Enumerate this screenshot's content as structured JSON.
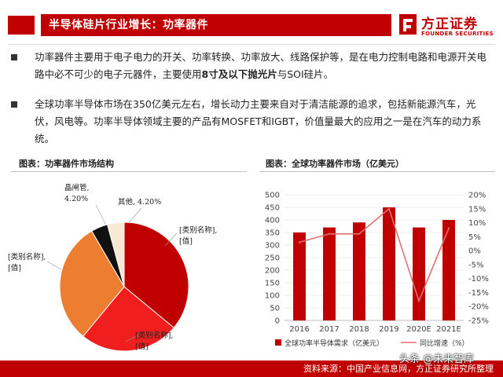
{
  "header": {
    "title": "半导体硅片行业增长：功率器件",
    "logo": {
      "name": "方正证券",
      "en": "FOUNDER SECURITIES"
    }
  },
  "bullets": [
    {
      "pre": "功率器件主要用于电子电力的开关、功率转换、功率放大、线路保护等，是在电力控制电路和电源开关电路中必不可少的电子元器件，主要使用",
      "bold": "8寸及以下抛光片",
      "post": "与SOI硅片。"
    },
    {
      "pre": "全球功率半导体市场在350亿美元左右，增长动力主要来自对于清洁能源的追求，包括新能源汽车，光伏，风电等。功率半导体领域主要的产品有MOSFET和IGBT，价值量最大的应用之一是在汽车的动力系统。",
      "bold": "",
      "post": ""
    }
  ],
  "captions": {
    "left": "图表：功率器件市场结构",
    "right": "图表：全球功率器件市场（亿美元）"
  },
  "chart_data": [
    {
      "type": "pie",
      "title": "",
      "slices": [
        {
          "label": "[类别名称],\n[值]",
          "value": null,
          "color": "#c00000"
        },
        {
          "label": "[类别名称],\n[值]",
          "value": null,
          "color": "#f01e1e"
        },
        {
          "label": "[类别名称],\n[值]",
          "value": null,
          "color": "#ed7d31"
        },
        {
          "label": "晶闸管,\n4.20%",
          "value": 4.2,
          "color": "#111111"
        },
        {
          "label": "其他, 4.20%",
          "value": 4.2,
          "color": "#f8e7d2"
        }
      ],
      "estimated_shares": [
        36,
        25,
        30.6,
        4.2,
        4.2
      ]
    },
    {
      "type": "bar",
      "title": "",
      "categories": [
        "2016",
        "2017",
        "2018",
        "2019",
        "2020E",
        "2021E"
      ],
      "series": [
        {
          "name": "全球功率半导体需求（亿美元）",
          "type": "bar",
          "axis": "left",
          "color": "#c00000",
          "values": [
            350,
            370,
            390,
            450,
            370,
            400
          ]
        },
        {
          "name": "同比增速（%）",
          "type": "line",
          "axis": "right",
          "color": "#e07070",
          "values": [
            3,
            6,
            6,
            15,
            -18,
            8
          ]
        }
      ],
      "y_left": {
        "min": 0,
        "max": 500,
        "ticks": [
          "0",
          "50",
          "100",
          "150",
          "200",
          "250",
          "300",
          "350",
          "400",
          "450",
          "500"
        ]
      },
      "y_right": {
        "min": -25,
        "max": 20,
        "ticks": [
          "-25%",
          "-20%",
          "-15%",
          "-10%",
          "-5%",
          "0%",
          "5%",
          "10%",
          "15%",
          "20%"
        ]
      },
      "grid": true,
      "legend": "bottom"
    }
  ],
  "footer": {
    "source": "资料来源：中国产业信息网，方正证券研究所整理",
    "watermark": "头条 @未来智库"
  }
}
